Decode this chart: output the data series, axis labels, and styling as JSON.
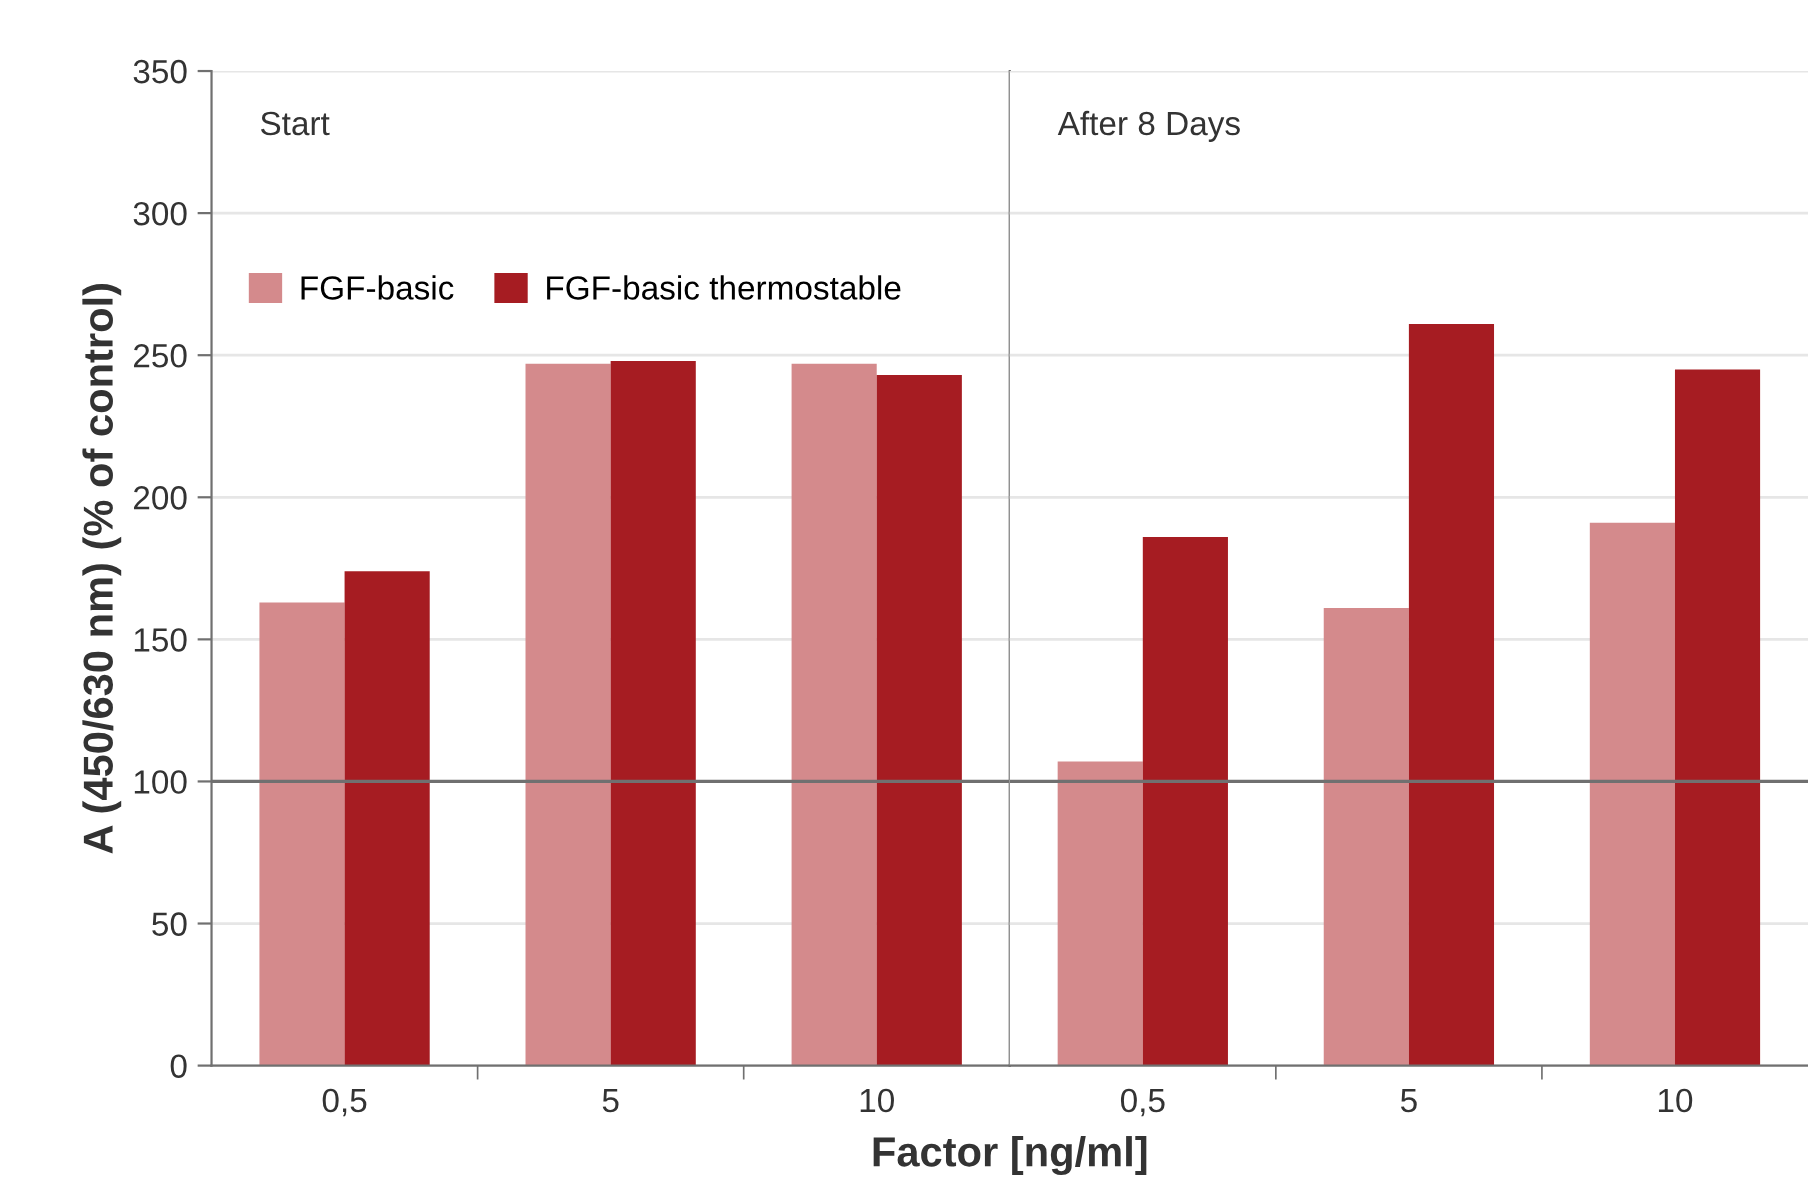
{
  "chart_data": [
    {
      "type": "bar",
      "categories": [
        "0,5",
        "5",
        "10"
      ],
      "ylabel": "A (450/630 nm) (% of control)",
      "xlabel": "Factor [ng/ml]",
      "annotations": [
        "Start"
      ],
      "series": [
        {
          "name": "FGF-basic",
          "color": "#d48a8c",
          "values": [
            163,
            247,
            247
          ]
        },
        {
          "name": "FGF-basic thermostable",
          "color": "#a61c22",
          "values": [
            174,
            248,
            243
          ]
        }
      ],
      "ylim": [
        0,
        350
      ],
      "yticks": [
        0,
        50,
        100,
        150,
        200,
        250,
        300,
        350
      ],
      "grid": "y",
      "legend": "top left",
      "ref_lines": [
        {
          "axis": "y",
          "value": 100,
          "color": "#707070"
        }
      ]
    },
    {
      "type": "bar",
      "categories": [
        "0,5",
        "5",
        "10"
      ],
      "annotations": [
        "After 8 Days"
      ],
      "series": [
        {
          "color": "#d48a8c",
          "values": [
            107,
            161,
            191
          ]
        },
        {
          "color": "#a61c22",
          "values": [
            186,
            261,
            245
          ]
        }
      ],
      "ylim": [
        0,
        350
      ],
      "yticks": [
        0,
        50,
        100,
        150,
        200,
        250,
        300,
        350
      ],
      "grid": "y",
      "tick_labels": "x",
      "ref_lines": [
        {
          "axis": "y",
          "value": 100,
          "color": "#707070"
        }
      ]
    }
  ]
}
